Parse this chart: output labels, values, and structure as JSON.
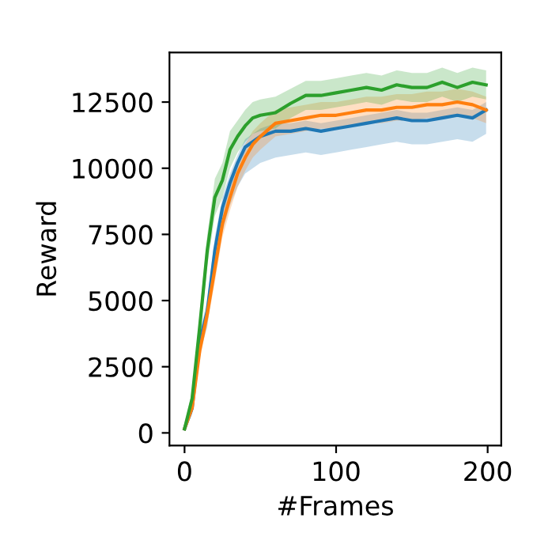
{
  "chart_data": {
    "type": "line",
    "xlabel": "#Frames",
    "ylabel": "Reward",
    "x": [
      0,
      5,
      10,
      15,
      20,
      25,
      30,
      35,
      40,
      45,
      50,
      60,
      70,
      80,
      90,
      100,
      110,
      120,
      130,
      140,
      150,
      160,
      170,
      180,
      190,
      199
    ],
    "series": [
      {
        "color": "#1f77b4",
        "values": [
          155,
          930,
          3450,
          4600,
          6900,
          8500,
          9450,
          10200,
          10800,
          11000,
          11200,
          11400,
          11400,
          11500,
          11400,
          11500,
          11600,
          11700,
          11800,
          11900,
          11800,
          11800,
          11900,
          12000,
          11900,
          12200
        ],
        "lower": [
          100,
          700,
          3000,
          4000,
          6200,
          7600,
          8600,
          9300,
          9800,
          10000,
          10200,
          10400,
          10500,
          10600,
          10500,
          10600,
          10700,
          10800,
          10900,
          11000,
          10900,
          10900,
          11000,
          11100,
          11000,
          11300
        ],
        "upper": [
          200,
          1100,
          3800,
          5000,
          7400,
          8900,
          9800,
          10500,
          11100,
          11300,
          11500,
          11700,
          11700,
          11800,
          11700,
          11800,
          11900,
          12000,
          12100,
          12200,
          12100,
          12100,
          12200,
          12300,
          12200,
          12500
        ]
      },
      {
        "color": "#ff7f0e",
        "values": [
          155,
          950,
          3100,
          4500,
          6200,
          7900,
          8900,
          9800,
          10400,
          10900,
          11200,
          11700,
          11800,
          11900,
          12000,
          12000,
          12100,
          12200,
          12200,
          12300,
          12300,
          12400,
          12400,
          12500,
          12400,
          12200
        ],
        "lower": [
          100,
          750,
          2800,
          4100,
          5700,
          7400,
          8400,
          9300,
          9900,
          10400,
          10700,
          11200,
          11300,
          11400,
          11500,
          11500,
          11600,
          11700,
          11700,
          11800,
          11800,
          11900,
          11900,
          12000,
          11900,
          11700
        ],
        "upper": [
          200,
          1150,
          3400,
          4900,
          6700,
          8400,
          9400,
          10300,
          10900,
          11400,
          11700,
          12200,
          12300,
          12400,
          12500,
          12500,
          12600,
          12700,
          12700,
          12800,
          12800,
          12900,
          12900,
          13000,
          12900,
          12700
        ]
      },
      {
        "color": "#2ca02c",
        "values": [
          155,
          1300,
          4000,
          6900,
          8900,
          9550,
          10700,
          11200,
          11600,
          11900,
          12000,
          12100,
          12450,
          12750,
          12750,
          12850,
          12950,
          13050,
          12950,
          13150,
          13050,
          13050,
          13250,
          13050,
          13250,
          13150
        ],
        "lower": [
          100,
          1000,
          3500,
          6300,
          8200,
          8900,
          10000,
          10600,
          11000,
          11300,
          11400,
          11500,
          11900,
          12200,
          12200,
          12300,
          12400,
          12500,
          12400,
          12600,
          12500,
          12500,
          12700,
          12500,
          12700,
          12600
        ],
        "upper": [
          200,
          1600,
          4500,
          7500,
          9600,
          10200,
          11400,
          11800,
          12200,
          12500,
          12600,
          12700,
          13000,
          13300,
          13300,
          13400,
          13500,
          13600,
          13500,
          13700,
          13600,
          13600,
          13800,
          13600,
          13800,
          13700
        ]
      }
    ],
    "xlim": [
      -9.95,
      208.95
    ],
    "ylim": [
      -475,
      14375
    ],
    "xticks": [
      0,
      100,
      200
    ],
    "yticks": [
      0,
      2500,
      5000,
      7500,
      10000,
      12500
    ],
    "grid": false,
    "legend": false
  }
}
